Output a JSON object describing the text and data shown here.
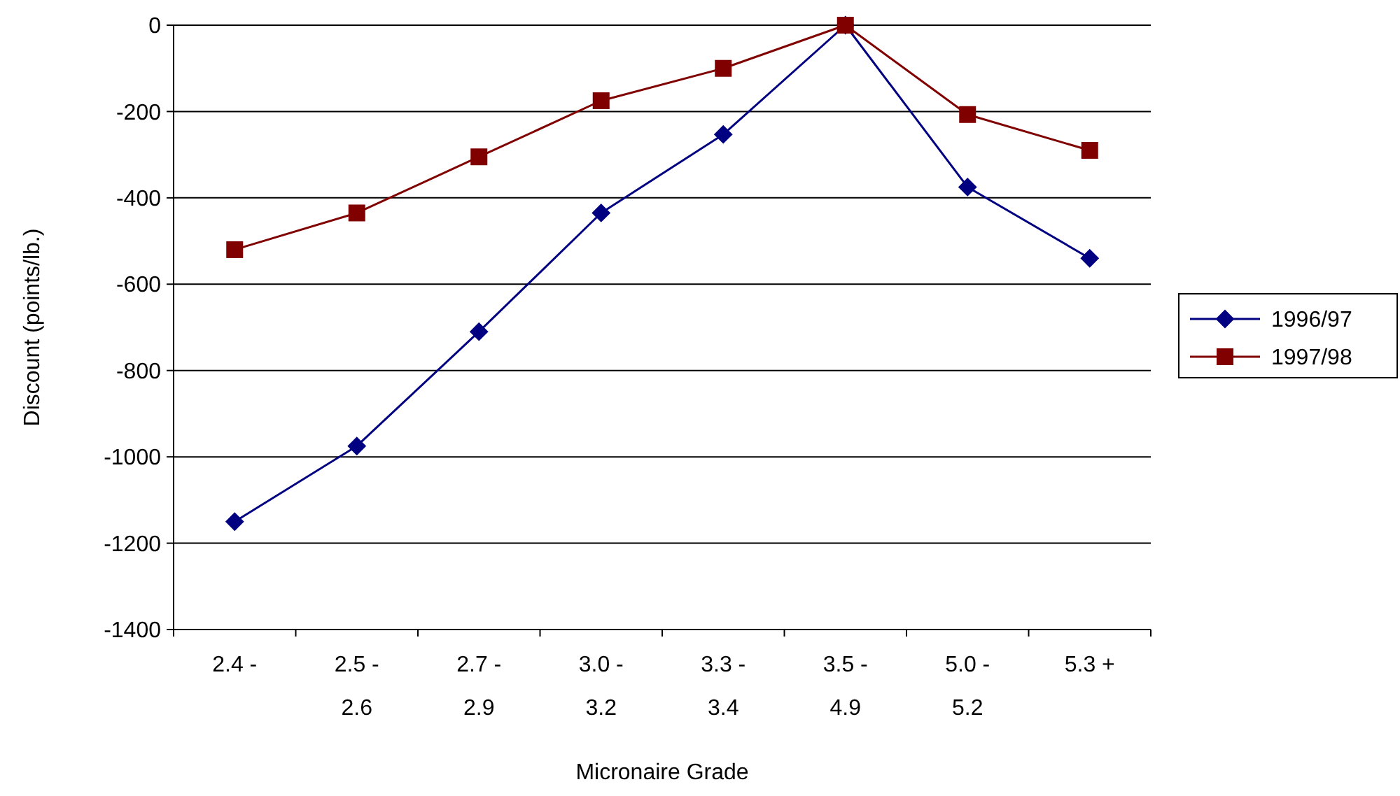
{
  "chart_data": {
    "type": "line",
    "xlabel": "Micronaire Grade",
    "ylabel": "Discount (points/lb.)",
    "categories": [
      "2.4 -",
      "2.5 - 2.6",
      "2.7 - 2.9",
      "3.0 - 3.2",
      "3.3 - 3.4",
      "3.5 - 4.9",
      "5.0 - 5.2",
      "5.3 +"
    ],
    "series": [
      {
        "name": "1996/97",
        "color": "#000080",
        "marker": "diamond",
        "values": [
          -1150,
          -975,
          -710,
          -435,
          -253,
          0,
          -375,
          -540
        ]
      },
      {
        "name": "1997/98",
        "color": "#800000",
        "marker": "square",
        "values": [
          -520,
          -435,
          -305,
          -175,
          -100,
          0,
          -207,
          -290
        ]
      }
    ],
    "ylim": [
      -1400,
      0
    ],
    "yticks": [
      -1400,
      -1200,
      -1000,
      -800,
      -600,
      -400,
      -200,
      0
    ],
    "grid": "y",
    "legend": "right",
    "line_style": "solid"
  }
}
